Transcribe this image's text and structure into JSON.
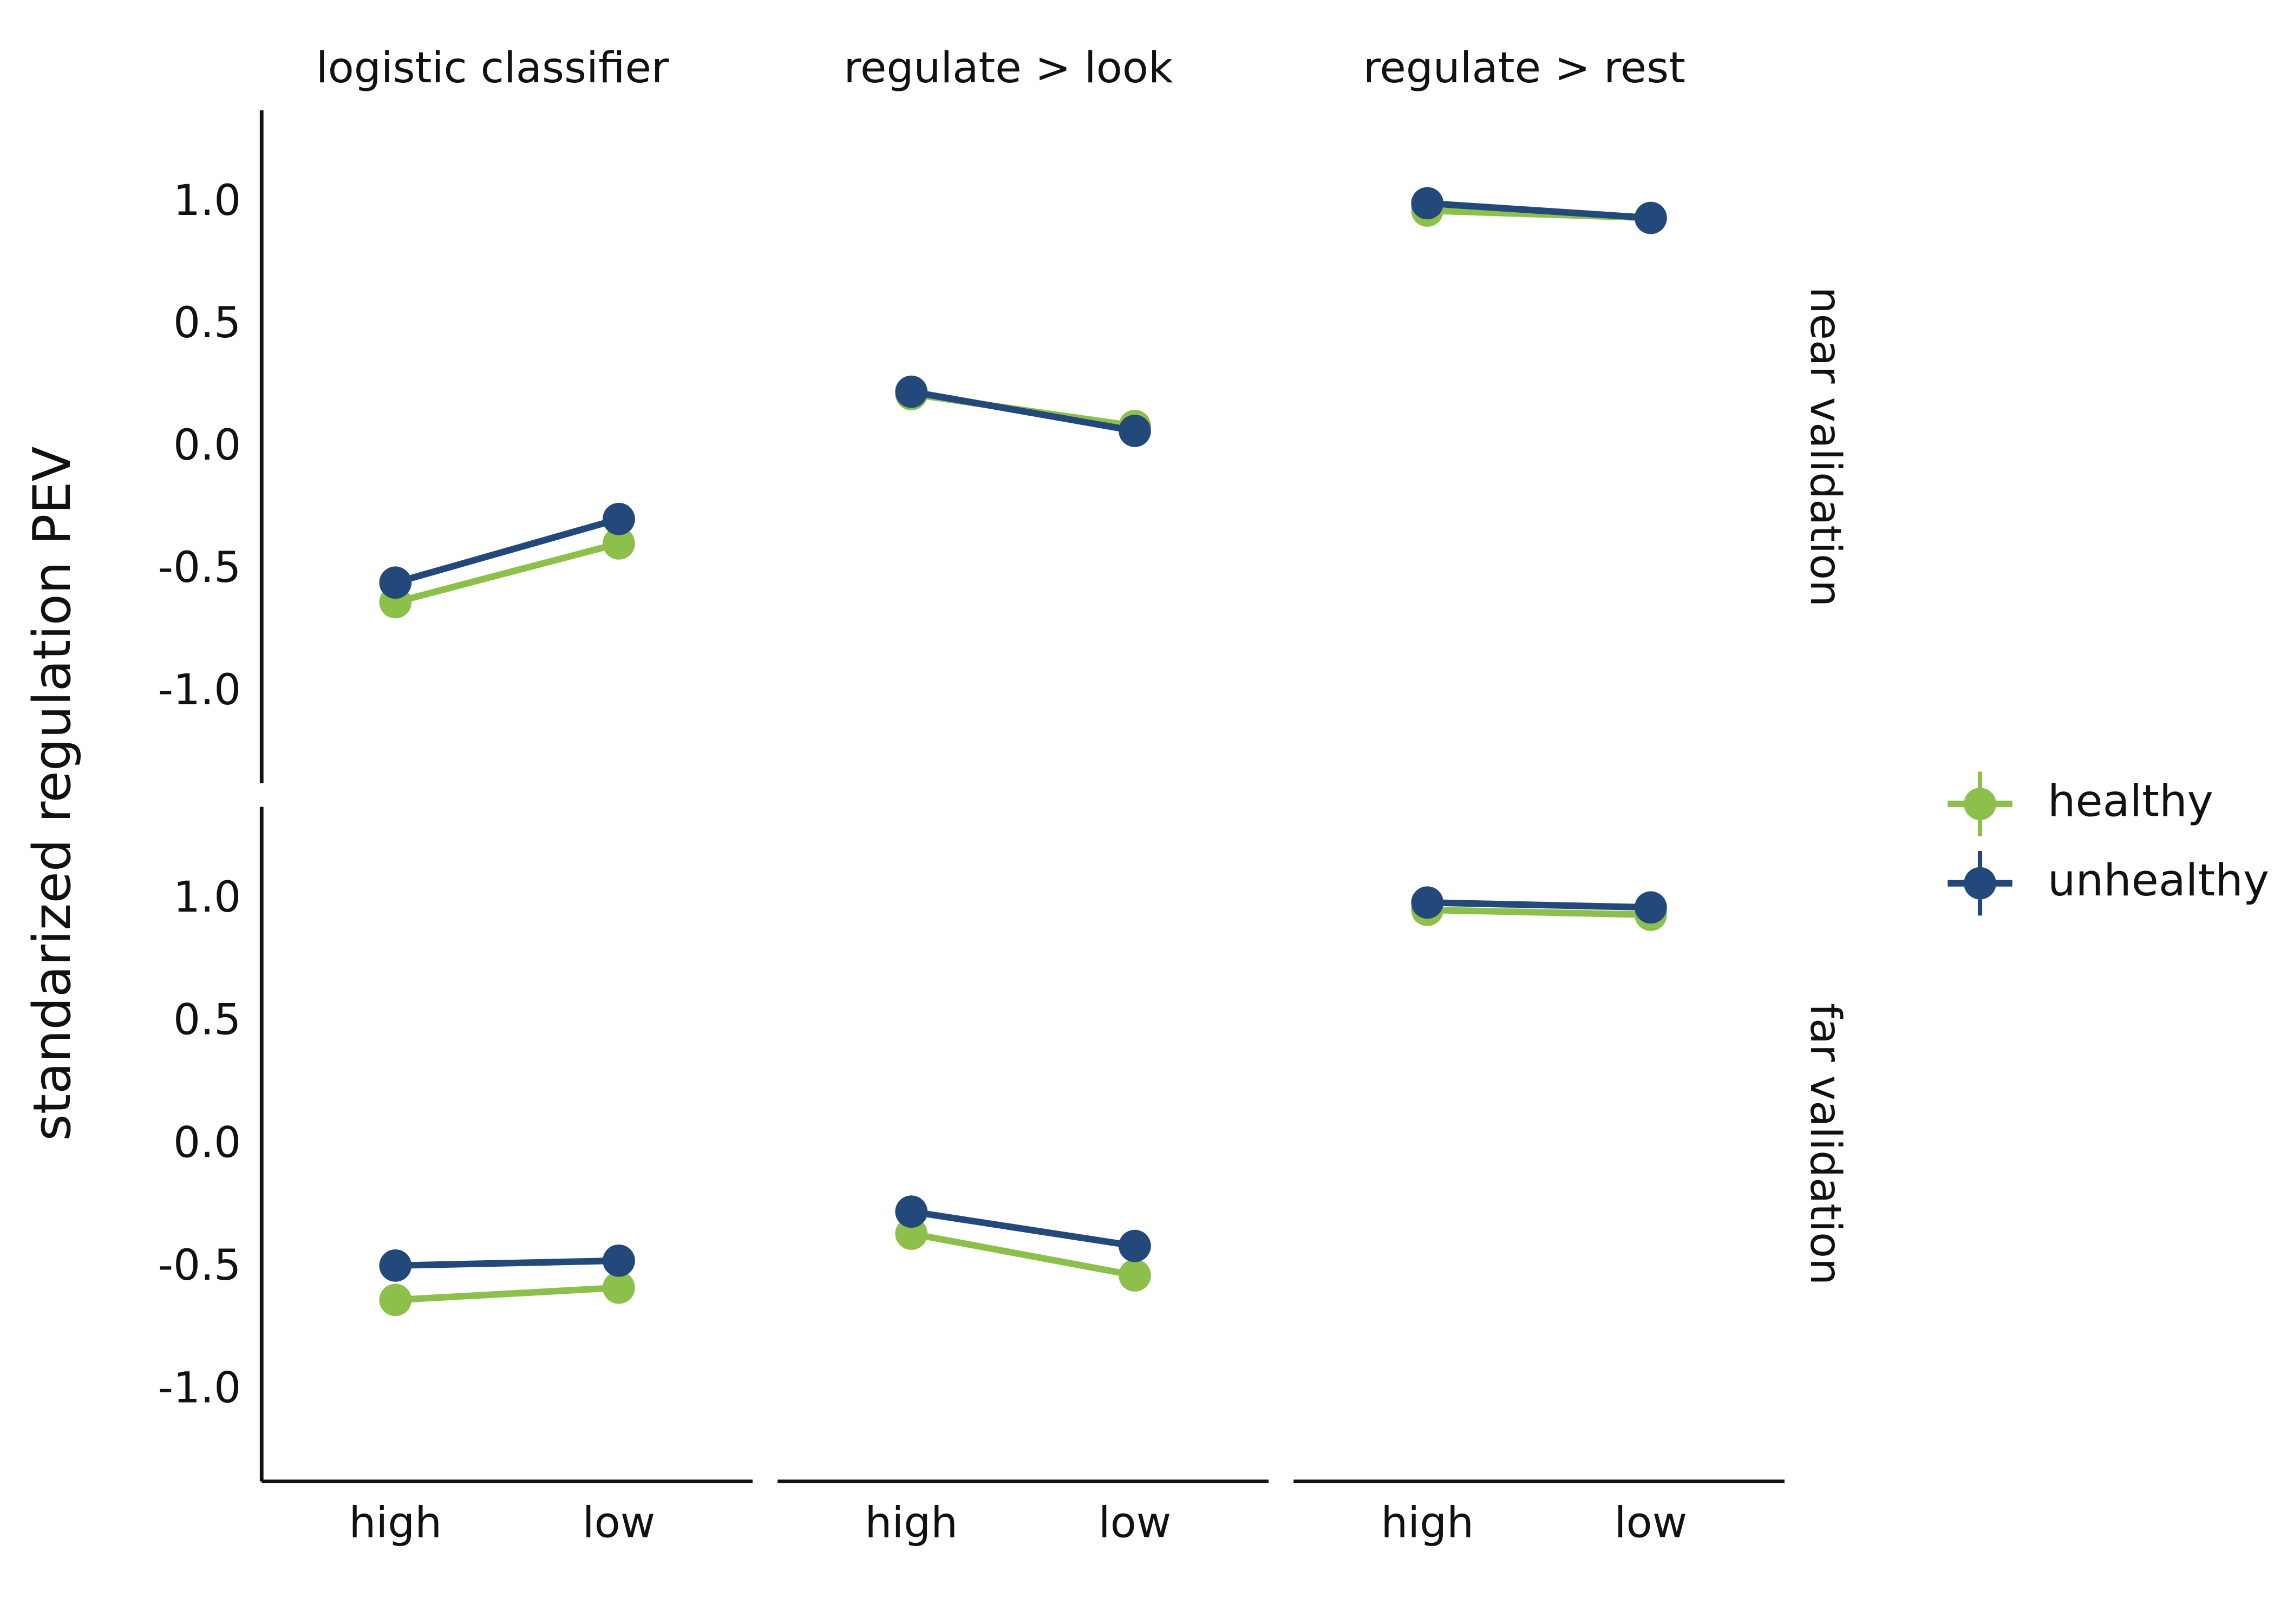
{
  "chart_data": {
    "type": "line",
    "ylabel": "standarized regulation PEV",
    "categories": [
      "high",
      "low"
    ],
    "columns": [
      "logistic classifier",
      "regulate > look",
      "regulate > rest"
    ],
    "rows": [
      "near validation",
      "far validation"
    ],
    "legend": [
      {
        "name": "healthy",
        "color": "#8dbf4b"
      },
      {
        "name": "unhealthy",
        "color": "#22497a"
      }
    ],
    "ylim": [
      -1.37,
      1.38
    ],
    "yticks": [
      {
        "value": -1,
        "label": "-1.0"
      },
      -0.5,
      {
        "value": 0,
        "label": "0.0"
      },
      0.5,
      {
        "value": 1,
        "label": "1.0"
      }
    ],
    "panels": [
      {
        "series": [
          {
            "values": [
              -0.63,
              -0.39
            ]
          },
          {
            "values": [
              -0.55,
              -0.29
            ]
          }
        ]
      },
      {
        "series": [
          {
            "values": [
              0.22,
              0.09
            ]
          },
          {
            "values": [
              0.23,
              0.07
            ]
          }
        ]
      },
      {
        "series": [
          {
            "values": [
              0.97,
              0.94
            ]
          },
          {
            "values": [
              1.0,
              0.94
            ]
          }
        ]
      },
      {
        "series": [
          {
            "values": [
              -0.63,
              -0.58
            ]
          },
          {
            "values": [
              -0.49,
              -0.47
            ]
          }
        ]
      },
      {
        "series": [
          {
            "values": [
              -0.36,
              -0.53
            ]
          },
          {
            "values": [
              -0.27,
              -0.41
            ]
          }
        ]
      },
      {
        "series": [
          {
            "values": [
              0.96,
              0.94
            ]
          },
          {
            "values": [
              0.99,
              0.97
            ]
          }
        ]
      }
    ]
  }
}
